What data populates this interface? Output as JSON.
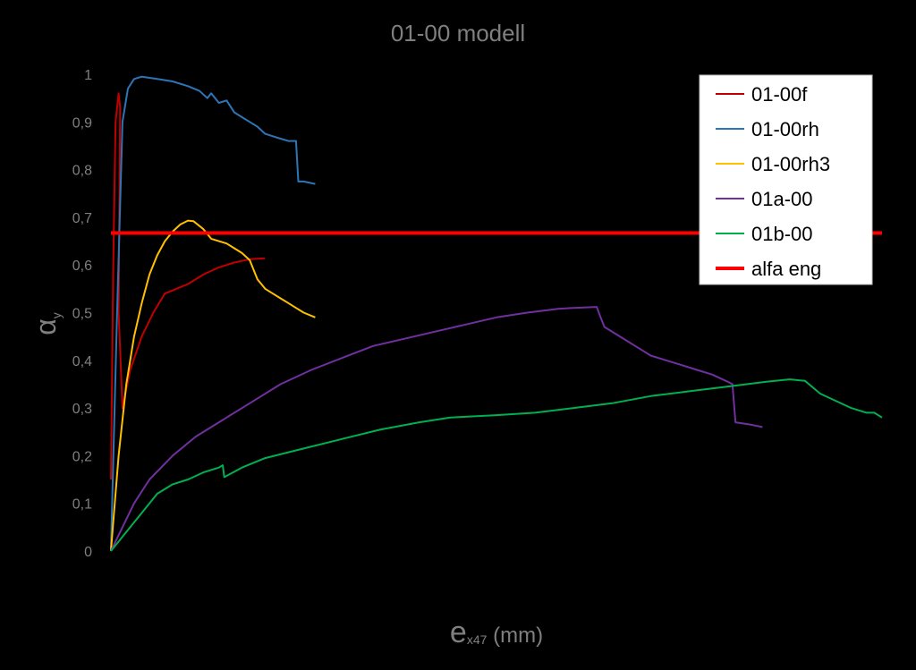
{
  "chart_data": {
    "type": "line",
    "title": "01-00 modell",
    "ylabel_main": "α",
    "ylabel_sub": "y",
    "xlabel_main": "e",
    "xlabel_sub": "x47",
    "xlabel_unit": " (mm)",
    "ylim": [
      0,
      1
    ],
    "xlim": [
      0,
      100
    ],
    "y_ticks": [
      "0",
      "0,1",
      "0,2",
      "0,3",
      "0,4",
      "0,5",
      "0,6",
      "0,7",
      "0,8",
      "0,9",
      "1"
    ],
    "grid": false,
    "legend_position": "top-right",
    "series": [
      {
        "name": "01-00f",
        "color": "#c00000",
        "width": 2,
        "points": [
          [
            0,
            0.15
          ],
          [
            0.3,
            0.6
          ],
          [
            0.6,
            0.9
          ],
          [
            1.0,
            0.96
          ],
          [
            1.2,
            0.93
          ],
          [
            1.0,
            0.5
          ],
          [
            1.5,
            0.3
          ],
          [
            2.5,
            0.38
          ],
          [
            4,
            0.45
          ],
          [
            5.5,
            0.5
          ],
          [
            7,
            0.54
          ],
          [
            8.5,
            0.55
          ],
          [
            10,
            0.56
          ],
          [
            12,
            0.58
          ],
          [
            14,
            0.595
          ],
          [
            16,
            0.605
          ],
          [
            18,
            0.612
          ],
          [
            20,
            0.614
          ]
        ]
      },
      {
        "name": "01-00rh",
        "color": "#2e75b6",
        "width": 2,
        "points": [
          [
            0,
            0.0
          ],
          [
            0.8,
            0.5
          ],
          [
            1.5,
            0.9
          ],
          [
            2.2,
            0.97
          ],
          [
            3,
            0.99
          ],
          [
            4,
            0.995
          ],
          [
            6,
            0.99
          ],
          [
            8,
            0.985
          ],
          [
            10,
            0.975
          ],
          [
            11.5,
            0.965
          ],
          [
            12.5,
            0.95
          ],
          [
            13,
            0.96
          ],
          [
            14,
            0.94
          ],
          [
            15,
            0.945
          ],
          [
            16,
            0.92
          ],
          [
            17,
            0.91
          ],
          [
            18,
            0.9
          ],
          [
            19,
            0.89
          ],
          [
            20,
            0.875
          ],
          [
            21,
            0.87
          ],
          [
            22,
            0.865
          ],
          [
            23,
            0.86
          ],
          [
            24,
            0.86
          ],
          [
            24.3,
            0.775
          ],
          [
            25,
            0.775
          ],
          [
            26.5,
            0.77
          ]
        ]
      },
      {
        "name": "01-00rh3",
        "color": "#ffc000",
        "width": 2,
        "points": [
          [
            0,
            0.0
          ],
          [
            1,
            0.2
          ],
          [
            2,
            0.35
          ],
          [
            3,
            0.45
          ],
          [
            4,
            0.52
          ],
          [
            5,
            0.58
          ],
          [
            6,
            0.62
          ],
          [
            7,
            0.65
          ],
          [
            8,
            0.67
          ],
          [
            9,
            0.685
          ],
          [
            10,
            0.693
          ],
          [
            10.7,
            0.692
          ],
          [
            12,
            0.675
          ],
          [
            13,
            0.655
          ],
          [
            14,
            0.65
          ],
          [
            15,
            0.645
          ],
          [
            16,
            0.635
          ],
          [
            17,
            0.625
          ],
          [
            18,
            0.61
          ],
          [
            19,
            0.57
          ],
          [
            20,
            0.55
          ],
          [
            21,
            0.54
          ],
          [
            22,
            0.53
          ],
          [
            23,
            0.52
          ],
          [
            24,
            0.51
          ],
          [
            25,
            0.5
          ],
          [
            26.5,
            0.49
          ]
        ]
      },
      {
        "name": "01a-00",
        "color": "#7030a0",
        "width": 2,
        "points": [
          [
            0,
            0.0
          ],
          [
            1.5,
            0.05
          ],
          [
            3,
            0.1
          ],
          [
            5,
            0.15
          ],
          [
            8,
            0.2
          ],
          [
            11,
            0.24
          ],
          [
            14,
            0.27
          ],
          [
            18,
            0.31
          ],
          [
            22,
            0.35
          ],
          [
            26,
            0.38
          ],
          [
            30,
            0.405
          ],
          [
            34,
            0.43
          ],
          [
            38,
            0.445
          ],
          [
            42,
            0.46
          ],
          [
            46,
            0.475
          ],
          [
            50,
            0.49
          ],
          [
            54,
            0.5
          ],
          [
            58,
            0.508
          ],
          [
            60,
            0.51
          ],
          [
            63,
            0.512
          ],
          [
            63.5,
            0.49
          ],
          [
            64,
            0.47
          ],
          [
            66,
            0.45
          ],
          [
            68,
            0.43
          ],
          [
            70,
            0.41
          ],
          [
            72,
            0.4
          ],
          [
            74,
            0.39
          ],
          [
            76,
            0.38
          ],
          [
            78,
            0.37
          ],
          [
            80,
            0.355
          ],
          [
            80.6,
            0.35
          ],
          [
            81,
            0.27
          ],
          [
            83,
            0.265
          ],
          [
            84.5,
            0.26
          ]
        ]
      },
      {
        "name": "01b-00",
        "color": "#00b050",
        "width": 2,
        "points": [
          [
            0,
            0.0
          ],
          [
            2,
            0.04
          ],
          [
            4,
            0.08
          ],
          [
            6,
            0.12
          ],
          [
            8,
            0.14
          ],
          [
            10,
            0.15
          ],
          [
            12,
            0.165
          ],
          [
            14,
            0.175
          ],
          [
            14.5,
            0.18
          ],
          [
            14.7,
            0.155
          ],
          [
            17,
            0.175
          ],
          [
            20,
            0.195
          ],
          [
            25,
            0.215
          ],
          [
            30,
            0.235
          ],
          [
            35,
            0.255
          ],
          [
            40,
            0.27
          ],
          [
            44,
            0.28
          ],
          [
            50,
            0.285
          ],
          [
            55,
            0.29
          ],
          [
            60,
            0.3
          ],
          [
            65,
            0.31
          ],
          [
            70,
            0.325
          ],
          [
            75,
            0.335
          ],
          [
            80,
            0.345
          ],
          [
            85,
            0.355
          ],
          [
            88,
            0.36
          ],
          [
            90,
            0.357
          ],
          [
            92,
            0.33
          ],
          [
            94,
            0.315
          ],
          [
            96,
            0.3
          ],
          [
            98,
            0.29
          ],
          [
            99,
            0.29
          ],
          [
            100,
            0.28
          ]
        ]
      },
      {
        "name": "alfa eng",
        "color": "#ff0000",
        "width": 4,
        "points": [
          [
            0,
            0.667
          ],
          [
            100,
            0.667
          ]
        ]
      }
    ]
  }
}
